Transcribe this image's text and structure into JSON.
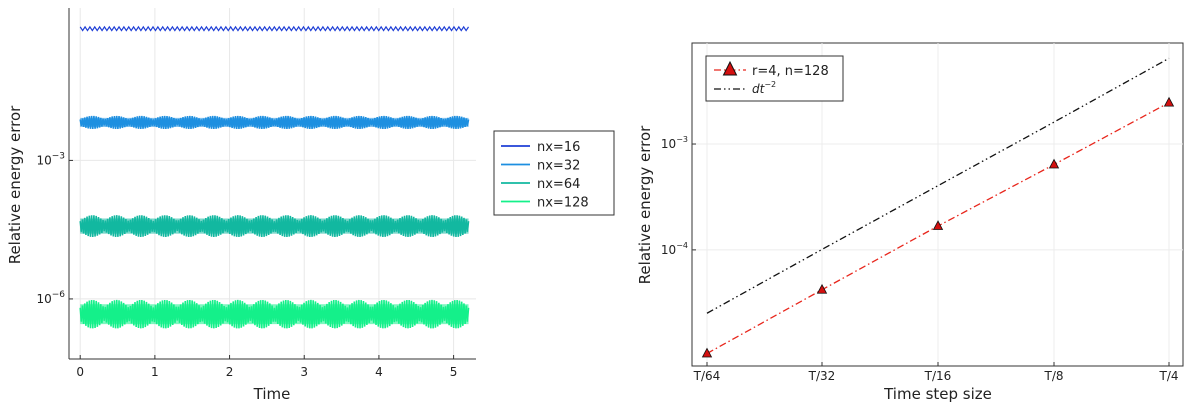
{
  "chart_data": [
    {
      "type": "line",
      "xlabel": "Time",
      "ylabel": "Relative energy error",
      "xlim": [
        -0.15,
        5.3
      ],
      "xticks": [
        0,
        1,
        2,
        3,
        4,
        5
      ],
      "y_scale": "log",
      "ylim": [
        5e-08,
        2
      ],
      "yticks": [
        {
          "value": 0.001,
          "base": "10",
          "exp": "−3"
        },
        {
          "value": 1e-06,
          "base": "10",
          "exp": "−6"
        }
      ],
      "grid": true,
      "legend_position": "outside-right",
      "series": [
        {
          "name": "nx=16",
          "color": "#1f3fd6",
          "y_low": 0.65,
          "y_high": 0.78,
          "x_end": 5.2
        },
        {
          "name": "nx=32",
          "color": "#1d8fe0",
          "y_low": 0.0048,
          "y_high": 0.0092,
          "x_end": 5.2
        },
        {
          "name": "nx=64",
          "color": "#12b8a0",
          "y_low": 2.2e-05,
          "y_high": 6.5e-05,
          "x_end": 5.2
        },
        {
          "name": "nx=128",
          "color": "#14f08a",
          "y_low": 2.3e-07,
          "y_high": 9.5e-07,
          "x_end": 5.2
        }
      ]
    },
    {
      "type": "line",
      "xlabel": "Time step size",
      "ylabel": "Relative energy error",
      "categories": [
        "T/64",
        "T/32",
        "T/16",
        "T/8",
        "T/4"
      ],
      "y_scale": "log",
      "ylim": [
        8e-06,
        0.009
      ],
      "yticks": [
        {
          "value": 0.001,
          "base": "10",
          "exp": "−3"
        },
        {
          "value": 0.0001,
          "base": "10",
          "exp": "−4"
        }
      ],
      "grid": true,
      "legend_position": "top-left",
      "series": [
        {
          "name": "r=4, n=128",
          "color": "#e8261c",
          "marker": "triangle",
          "style": "dash-dot",
          "values": [
            1.05e-05,
            4.2e-05,
            0.000168,
            0.00064,
            0.00246
          ]
        },
        {
          "name": "dt",
          "name_superscript": "−2",
          "color": "#111111",
          "style": "dash-dot-dot",
          "values": [
            2.52e-05,
            0.000101,
            0.000404,
            0.00161,
            0.00645
          ]
        }
      ]
    }
  ]
}
